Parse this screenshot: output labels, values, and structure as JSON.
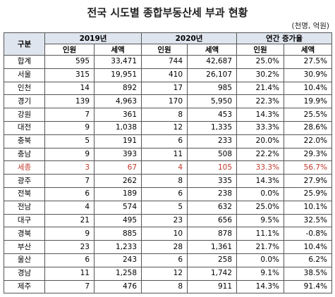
{
  "header": {
    "title": "전국 시도별 종합부동산세 부과 현황",
    "unit": "(천명, 억원)"
  },
  "table": {
    "group_headers": [
      "구분",
      "2019년",
      "2020년",
      "연간 증가율"
    ],
    "sub_headers": [
      "인원",
      "세액",
      "인원",
      "세액",
      "인원",
      "세액"
    ],
    "rows": [
      [
        "합계",
        "595",
        "33,471",
        "744",
        "42,687",
        "25.0%",
        "27.5%"
      ],
      [
        "서울",
        "315",
        "19,951",
        "410",
        "26,107",
        "30.2%",
        "30.9%"
      ],
      [
        "인천",
        "14",
        "892",
        "17",
        "985",
        "21.4%",
        "10.4%"
      ],
      [
        "경기",
        "139",
        "4,963",
        "170",
        "5,950",
        "22.3%",
        "19.9%"
      ],
      [
        "강원",
        "7",
        "361",
        "8",
        "453",
        "14.3%",
        "25.5%"
      ],
      [
        "대전",
        "9",
        "1,038",
        "12",
        "1,335",
        "33.3%",
        "28.6%"
      ],
      [
        "충북",
        "5",
        "191",
        "6",
        "233",
        "20.0%",
        "22.0%"
      ],
      [
        "충남",
        "9",
        "393",
        "11",
        "508",
        "22.2%",
        "29.3%"
      ],
      [
        "세종",
        "3",
        "67",
        "4",
        "105",
        "33.3%",
        "56.7%"
      ],
      [
        "광주",
        "7",
        "262",
        "8",
        "335",
        "14.3%",
        "27.9%"
      ],
      [
        "전북",
        "6",
        "189",
        "6",
        "238",
        "0.0%",
        "25.9%"
      ],
      [
        "전남",
        "4",
        "574",
        "5",
        "632",
        "25.0%",
        "10.1%"
      ],
      [
        "대구",
        "21",
        "495",
        "23",
        "656",
        "9.5%",
        "32.5%"
      ],
      [
        "경북",
        "9",
        "885",
        "10",
        "878",
        "11.1%",
        "-0.8%"
      ],
      [
        "부산",
        "23",
        "1,233",
        "28",
        "1,361",
        "21.7%",
        "10.4%"
      ],
      [
        "울산",
        "6",
        "243",
        "6",
        "258",
        "0.0%",
        "6.2%"
      ],
      [
        "경남",
        "11",
        "1,258",
        "12",
        "1,742",
        "9.1%",
        "38.5%"
      ],
      [
        "제주",
        "7",
        "476",
        "8",
        "911",
        "14.3%",
        "91.4%"
      ]
    ]
  }
}
